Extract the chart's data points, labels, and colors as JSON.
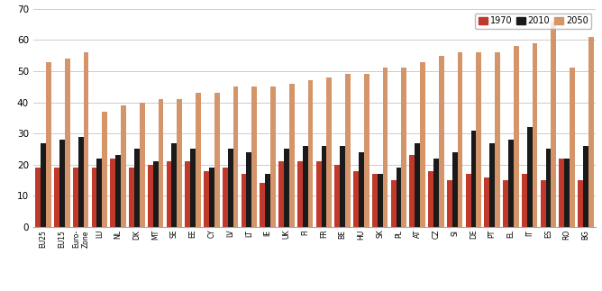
{
  "categories": [
    "EU25",
    "EU15",
    "Euro-\nZone",
    "LU",
    "NL",
    "DK",
    "MT",
    "SE",
    "EE",
    "CY",
    "LV",
    "LT",
    "IE",
    "UK",
    "FI",
    "FR",
    "BE",
    "HU",
    "SK",
    "PL",
    "AT",
    "CZ",
    "SI",
    "DE",
    "PT",
    "EL",
    "IT",
    "ES",
    "RO",
    "BG"
  ],
  "data_1970": [
    19,
    19,
    19,
    19,
    22,
    19,
    20,
    21,
    21,
    18,
    19,
    17,
    14,
    21,
    21,
    21,
    20,
    18,
    17,
    15,
    23,
    18,
    15,
    17,
    16,
    15,
    17,
    15,
    22,
    15
  ],
  "data_2010": [
    27,
    28,
    29,
    22,
    23,
    25,
    21,
    27,
    25,
    19,
    25,
    24,
    17,
    25,
    26,
    26,
    26,
    24,
    17,
    19,
    27,
    22,
    24,
    31,
    27,
    28,
    32,
    25,
    22,
    26
  ],
  "data_2050": [
    53,
    54,
    56,
    37,
    39,
    40,
    41,
    41,
    43,
    43,
    45,
    45,
    45,
    46,
    47,
    48,
    49,
    49,
    51,
    51,
    53,
    55,
    56,
    56,
    56,
    58,
    59,
    66,
    51,
    61
  ],
  "color_1970": "#C0392B",
  "color_2010": "#1a1a1a",
  "color_2050": "#D4956A",
  "ylim": [
    0,
    70
  ],
  "yticks": [
    0,
    10,
    20,
    30,
    40,
    50,
    60,
    70
  ],
  "legend_labels": [
    "1970",
    "2010",
    "2050"
  ],
  "background_color": "#ffffff",
  "grid_color": "#cccccc"
}
